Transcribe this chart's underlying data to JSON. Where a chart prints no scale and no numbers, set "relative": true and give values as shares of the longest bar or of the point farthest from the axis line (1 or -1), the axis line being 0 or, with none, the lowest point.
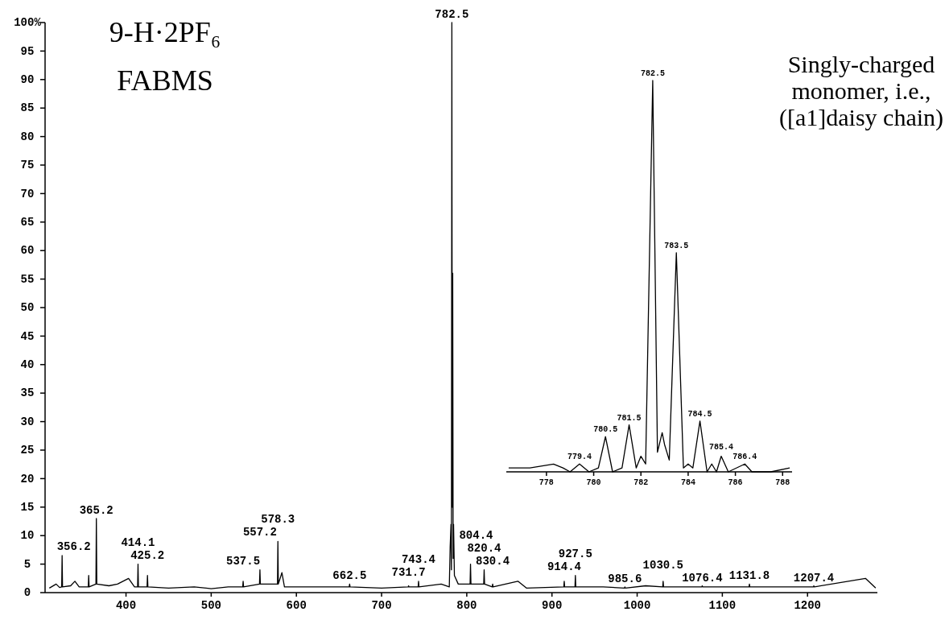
{
  "chart_data": [
    {
      "type": "line",
      "title": "9-H·2PF₆",
      "subtitle": "FABMS",
      "xlim": [
        305,
        1282
      ],
      "xticks": [
        400,
        500,
        600,
        700,
        800,
        900,
        1000,
        1100,
        1200
      ],
      "ylim": [
        0,
        100
      ],
      "yticks": [
        0,
        5,
        10,
        15,
        20,
        25,
        30,
        35,
        40,
        45,
        50,
        55,
        60,
        65,
        70,
        75,
        80,
        85,
        90,
        95,
        {
          "value": 100,
          "label": "100%"
        }
      ],
      "line_style": "solid",
      "series": [
        {
          "color": "#000000",
          "x": [
            310,
            318,
            322,
            324.5,
            325,
            325.5,
            335,
            340,
            345,
            355.7,
            356.2,
            356.7,
            364.7,
            365.2,
            365.7,
            380,
            390,
            403,
            410,
            413.6,
            414.1,
            414.6,
            424.7,
            425.2,
            425.7,
            450,
            480,
            500,
            520,
            537,
            537.5,
            538,
            556.7,
            557.2,
            557.7,
            577.8,
            578.3,
            578.8,
            583,
            586,
            620,
            662,
            662.5,
            663,
            700,
            731.2,
            731.7,
            732.2,
            742.9,
            743.4,
            743.9,
            770,
            779.5,
            780.5,
            781.5,
            782,
            782.5,
            783,
            783.5,
            784,
            784.5,
            785.5,
            790,
            803.9,
            804.4,
            804.9,
            819.9,
            820.4,
            820.9,
            829.9,
            830.4,
            830.9,
            860,
            870,
            913.9,
            914.4,
            914.9,
            927,
            927.5,
            928,
            960,
            985.1,
            985.6,
            986.1,
            1010,
            1030,
            1030.5,
            1031,
            1076,
            1076.4,
            1077,
            1100,
            1131.3,
            1131.8,
            1132.3,
            1180,
            1207,
            1207.4,
            1208,
            1268,
            1280
          ],
          "values": [
            0.8,
            1.5,
            0.9,
            1,
            6.5,
            1,
            1.2,
            2,
            1,
            1,
            3,
            1,
            1.5,
            13,
            1.5,
            1.2,
            1.5,
            2.5,
            1,
            1,
            5,
            1,
            1,
            3,
            1,
            0.8,
            1,
            0.7,
            1,
            1,
            2,
            1,
            1.5,
            4,
            1.5,
            1.5,
            9,
            1.5,
            3.5,
            1,
            1,
            1,
            1.5,
            1,
            0.8,
            1,
            1.2,
            1,
            1,
            2,
            1,
            1.5,
            1,
            8,
            12,
            4,
            100,
            15,
            56,
            6,
            12,
            3,
            1.5,
            1.5,
            5,
            1.5,
            1.5,
            4,
            1.5,
            1,
            1.5,
            1,
            2,
            0.8,
            1,
            2,
            1,
            1,
            3,
            1,
            1,
            0.8,
            1,
            0.8,
            1.2,
            1,
            2,
            1,
            1,
            1.2,
            1,
            1,
            1,
            1.5,
            1,
            1,
            1,
            1.2,
            1,
            2.5,
            0.8
          ]
        }
      ],
      "annotations": [
        {
          "text": "356.2",
          "x": 356.2,
          "y": 3
        },
        {
          "text": "365.2",
          "x": 365.2,
          "y": 13
        },
        {
          "text": "414.1",
          "x": 414.1,
          "y": 5
        },
        {
          "text": "425.2",
          "x": 425.2,
          "y": 3
        },
        {
          "text": "537.5",
          "x": 537.5,
          "y": 2
        },
        {
          "text": "557.2",
          "x": 557.2,
          "y": 4
        },
        {
          "text": "578.3",
          "x": 578.3,
          "y": 9
        },
        {
          "text": "662.5",
          "x": 662.5,
          "y": 1.5
        },
        {
          "text": "731.7",
          "x": 731.7,
          "y": 1.2
        },
        {
          "text": "743.4",
          "x": 743.4,
          "y": 2
        },
        {
          "text": "782.5",
          "x": 782.5,
          "y": 100
        },
        {
          "text": "804.4",
          "x": 804.4,
          "y": 5
        },
        {
          "text": "820.4",
          "x": 820.4,
          "y": 4
        },
        {
          "text": "830.4",
          "x": 830.4,
          "y": 1.5
        },
        {
          "text": "914.4",
          "x": 914.4,
          "y": 2
        },
        {
          "text": "927.5",
          "x": 927.5,
          "y": 3
        },
        {
          "text": "985.6",
          "x": 985.6,
          "y": 1
        },
        {
          "text": "1030.5",
          "x": 1030.5,
          "y": 2
        },
        {
          "text": "1076.4",
          "x": 1076.4,
          "y": 1.2
        },
        {
          "text": "1131.8",
          "x": 1131.8,
          "y": 1.5
        },
        {
          "text": "1207.4",
          "x": 1207.4,
          "y": 1.2
        }
      ]
    },
    {
      "type": "line",
      "relative": true,
      "xlim": [
        776.3,
        788.4
      ],
      "xticks": [
        778,
        780,
        782,
        784,
        786,
        788
      ],
      "line_style": "solid",
      "series": [
        {
          "color": "#000000",
          "x": [
            776.4,
            777.3,
            778.3,
            778.7,
            779,
            779.4,
            779.8,
            780.2,
            780.5,
            780.8,
            781.2,
            781.5,
            781.8,
            782,
            782.2,
            782.5,
            782.7,
            782.9,
            783,
            783.2,
            783.5,
            783.8,
            784,
            784.2,
            784.5,
            784.8,
            785,
            785.2,
            785.4,
            785.7,
            786.4,
            786.7,
            787.5,
            788.3
          ],
          "values": [
            0.01,
            0.01,
            0.02,
            0.01,
            0,
            0.02,
            0,
            0.01,
            0.09,
            0,
            0.01,
            0.12,
            0.01,
            0.04,
            0.02,
            1,
            0.05,
            0.1,
            0.07,
            0.03,
            0.56,
            0.01,
            0.02,
            0.01,
            0.13,
            0,
            0.02,
            0,
            0.04,
            0,
            0.02,
            0,
            0,
            0.01
          ]
        }
      ],
      "annotations": [
        {
          "text": "779.4",
          "x": 779.4,
          "y": 0.02
        },
        {
          "text": "780.5",
          "x": 780.5,
          "y": 0.09
        },
        {
          "text": "781.5",
          "x": 781.5,
          "y": 0.12
        },
        {
          "text": "782.5",
          "x": 782.5,
          "y": 1
        },
        {
          "text": "783.5",
          "x": 783.5,
          "y": 0.56
        },
        {
          "text": "784.5",
          "x": 784.5,
          "y": 0.13
        },
        {
          "text": "785.4",
          "x": 785.4,
          "y": 0.04
        },
        {
          "text": "786.4",
          "x": 786.4,
          "y": 0.02
        },
        "Singly-charged",
        "monomer, i.e.,",
        "([a1]daisy chain)"
      ]
    }
  ]
}
